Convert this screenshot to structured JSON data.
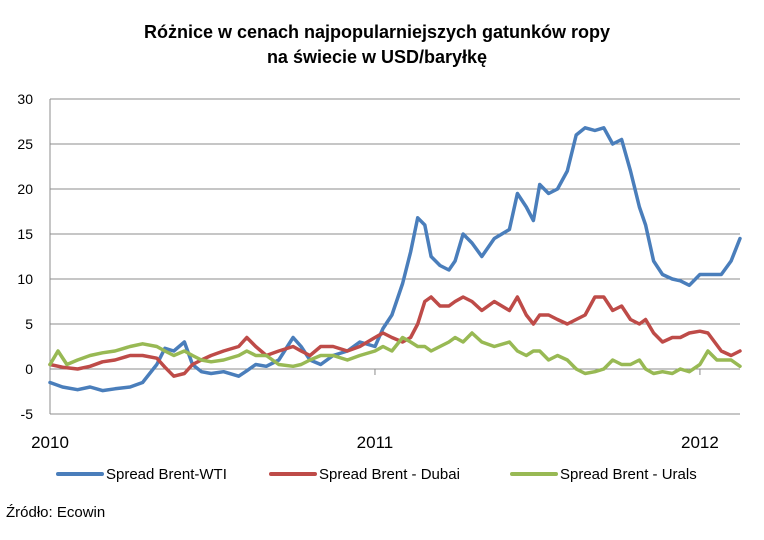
{
  "chart_data": {
    "type": "line",
    "title": [
      "Różnice w cenach najpopularniejszych gatunków ropy",
      "na świecie w USD/baryłkę"
    ],
    "xlabel": "",
    "ylabel": "",
    "x_ticks": [
      "2010",
      "2011",
      "2012"
    ],
    "y_ticks": [
      "30",
      "25",
      "20",
      "15",
      "10",
      "5",
      "0",
      "-5"
    ],
    "xlim": [
      "2010-01-01",
      "2012-02-15"
    ],
    "ylim": [
      -5,
      30
    ],
    "grid": "horizontal",
    "legend_position": "bottom",
    "source": "Źródło: Ecowin",
    "series": [
      {
        "name": "Spread Brent-WTI",
        "color": "#4a7ebb",
        "points": [
          [
            "2010-01-01",
            -1.5
          ],
          [
            "2010-01-15",
            -2.0
          ],
          [
            "2010-02-01",
            -2.3
          ],
          [
            "2010-02-15",
            -2.0
          ],
          [
            "2010-03-01",
            -2.4
          ],
          [
            "2010-03-15",
            -2.2
          ],
          [
            "2010-04-01",
            -2.0
          ],
          [
            "2010-04-15",
            -1.5
          ],
          [
            "2010-05-01",
            0.5
          ],
          [
            "2010-05-10",
            2.3
          ],
          [
            "2010-05-20",
            2.0
          ],
          [
            "2010-06-01",
            3.0
          ],
          [
            "2010-06-10",
            0.5
          ],
          [
            "2010-06-20",
            -0.3
          ],
          [
            "2010-07-01",
            -0.5
          ],
          [
            "2010-07-15",
            -0.3
          ],
          [
            "2010-08-01",
            -0.8
          ],
          [
            "2010-08-10",
            -0.2
          ],
          [
            "2010-08-20",
            0.5
          ],
          [
            "2010-09-01",
            0.3
          ],
          [
            "2010-09-15",
            1.0
          ],
          [
            "2010-10-01",
            3.5
          ],
          [
            "2010-10-10",
            2.5
          ],
          [
            "2010-10-20",
            1.0
          ],
          [
            "2010-11-01",
            0.5
          ],
          [
            "2010-11-15",
            1.5
          ],
          [
            "2010-12-01",
            2.0
          ],
          [
            "2010-12-15",
            3.0
          ],
          [
            "2011-01-01",
            2.5
          ],
          [
            "2011-01-10",
            4.5
          ],
          [
            "2011-01-20",
            6.0
          ],
          [
            "2011-02-01",
            9.5
          ],
          [
            "2011-02-10",
            13.0
          ],
          [
            "2011-02-18",
            16.8
          ],
          [
            "2011-02-26",
            16.0
          ],
          [
            "2011-03-05",
            12.5
          ],
          [
            "2011-03-15",
            11.5
          ],
          [
            "2011-03-25",
            11.0
          ],
          [
            "2011-04-01",
            12.0
          ],
          [
            "2011-04-10",
            15.0
          ],
          [
            "2011-04-20",
            14.0
          ],
          [
            "2011-05-01",
            12.5
          ],
          [
            "2011-05-15",
            14.5
          ],
          [
            "2011-06-01",
            15.5
          ],
          [
            "2011-06-10",
            19.5
          ],
          [
            "2011-06-20",
            18.0
          ],
          [
            "2011-06-28",
            16.5
          ],
          [
            "2011-07-05",
            20.5
          ],
          [
            "2011-07-15",
            19.5
          ],
          [
            "2011-07-25",
            20.0
          ],
          [
            "2011-08-05",
            22.0
          ],
          [
            "2011-08-15",
            26.0
          ],
          [
            "2011-08-25",
            26.8
          ],
          [
            "2011-09-05",
            26.5
          ],
          [
            "2011-09-15",
            26.8
          ],
          [
            "2011-09-25",
            25.0
          ],
          [
            "2011-10-05",
            25.5
          ],
          [
            "2011-10-15",
            22.0
          ],
          [
            "2011-10-25",
            18.0
          ],
          [
            "2011-11-01",
            16.0
          ],
          [
            "2011-11-10",
            12.0
          ],
          [
            "2011-11-20",
            10.5
          ],
          [
            "2011-12-01",
            10.0
          ],
          [
            "2011-12-10",
            9.8
          ],
          [
            "2011-12-20",
            9.3
          ],
          [
            "2012-01-01",
            10.5
          ],
          [
            "2012-01-10",
            10.5
          ],
          [
            "2012-01-25",
            10.5
          ],
          [
            "2012-02-05",
            12.0
          ],
          [
            "2012-02-15",
            14.5
          ]
        ]
      },
      {
        "name": "Spread Brent - Dubai",
        "color": "#be4b48",
        "points": [
          [
            "2010-01-01",
            0.5
          ],
          [
            "2010-01-15",
            0.2
          ],
          [
            "2010-02-01",
            0.0
          ],
          [
            "2010-02-15",
            0.3
          ],
          [
            "2010-03-01",
            0.8
          ],
          [
            "2010-03-15",
            1.0
          ],
          [
            "2010-04-01",
            1.5
          ],
          [
            "2010-04-15",
            1.5
          ],
          [
            "2010-05-01",
            1.2
          ],
          [
            "2010-05-10",
            0.2
          ],
          [
            "2010-05-20",
            -0.8
          ],
          [
            "2010-06-01",
            -0.5
          ],
          [
            "2010-06-10",
            0.5
          ],
          [
            "2010-06-20",
            1.0
          ],
          [
            "2010-07-01",
            1.5
          ],
          [
            "2010-07-15",
            2.0
          ],
          [
            "2010-08-01",
            2.5
          ],
          [
            "2010-08-10",
            3.5
          ],
          [
            "2010-08-20",
            2.5
          ],
          [
            "2010-09-01",
            1.5
          ],
          [
            "2010-09-15",
            2.0
          ],
          [
            "2010-10-01",
            2.5
          ],
          [
            "2010-10-10",
            2.0
          ],
          [
            "2010-10-20",
            1.5
          ],
          [
            "2010-11-01",
            2.5
          ],
          [
            "2010-11-15",
            2.5
          ],
          [
            "2010-12-01",
            2.0
          ],
          [
            "2010-12-15",
            2.5
          ],
          [
            "2011-01-01",
            3.5
          ],
          [
            "2011-01-10",
            4.0
          ],
          [
            "2011-01-20",
            3.5
          ],
          [
            "2011-02-01",
            3.0
          ],
          [
            "2011-02-10",
            3.5
          ],
          [
            "2011-02-18",
            5.0
          ],
          [
            "2011-02-26",
            7.5
          ],
          [
            "2011-03-05",
            8.0
          ],
          [
            "2011-03-15",
            7.0
          ],
          [
            "2011-03-25",
            7.0
          ],
          [
            "2011-04-01",
            7.5
          ],
          [
            "2011-04-10",
            8.0
          ],
          [
            "2011-04-20",
            7.5
          ],
          [
            "2011-05-01",
            6.5
          ],
          [
            "2011-05-15",
            7.5
          ],
          [
            "2011-06-01",
            6.5
          ],
          [
            "2011-06-10",
            8.0
          ],
          [
            "2011-06-20",
            6.0
          ],
          [
            "2011-06-28",
            5.0
          ],
          [
            "2011-07-05",
            6.0
          ],
          [
            "2011-07-15",
            6.0
          ],
          [
            "2011-07-25",
            5.5
          ],
          [
            "2011-08-05",
            5.0
          ],
          [
            "2011-08-15",
            5.5
          ],
          [
            "2011-08-25",
            6.0
          ],
          [
            "2011-09-05",
            8.0
          ],
          [
            "2011-09-15",
            8.0
          ],
          [
            "2011-09-25",
            6.5
          ],
          [
            "2011-10-05",
            7.0
          ],
          [
            "2011-10-15",
            5.5
          ],
          [
            "2011-10-25",
            5.0
          ],
          [
            "2011-11-01",
            5.5
          ],
          [
            "2011-11-10",
            4.0
          ],
          [
            "2011-11-20",
            3.0
          ],
          [
            "2011-12-01",
            3.5
          ],
          [
            "2011-12-10",
            3.5
          ],
          [
            "2011-12-20",
            4.0
          ],
          [
            "2012-01-01",
            4.2
          ],
          [
            "2012-01-10",
            4.0
          ],
          [
            "2012-01-25",
            2.0
          ],
          [
            "2012-02-05",
            1.5
          ],
          [
            "2012-02-15",
            2.0
          ]
        ]
      },
      {
        "name": "Spread Brent - Urals",
        "color": "#98b954",
        "points": [
          [
            "2010-01-01",
            0.5
          ],
          [
            "2010-01-10",
            2.0
          ],
          [
            "2010-01-20",
            0.5
          ],
          [
            "2010-02-01",
            1.0
          ],
          [
            "2010-02-15",
            1.5
          ],
          [
            "2010-03-01",
            1.8
          ],
          [
            "2010-03-15",
            2.0
          ],
          [
            "2010-04-01",
            2.5
          ],
          [
            "2010-04-15",
            2.8
          ],
          [
            "2010-05-01",
            2.5
          ],
          [
            "2010-05-10",
            2.0
          ],
          [
            "2010-05-20",
            1.5
          ],
          [
            "2010-06-01",
            2.0
          ],
          [
            "2010-06-10",
            1.5
          ],
          [
            "2010-06-20",
            1.0
          ],
          [
            "2010-07-01",
            0.8
          ],
          [
            "2010-07-15",
            1.0
          ],
          [
            "2010-08-01",
            1.5
          ],
          [
            "2010-08-10",
            2.0
          ],
          [
            "2010-08-20",
            1.5
          ],
          [
            "2010-09-01",
            1.5
          ],
          [
            "2010-09-15",
            0.5
          ],
          [
            "2010-10-01",
            0.3
          ],
          [
            "2010-10-10",
            0.5
          ],
          [
            "2010-10-20",
            1.0
          ],
          [
            "2010-11-01",
            1.5
          ],
          [
            "2010-11-15",
            1.5
          ],
          [
            "2010-12-01",
            1.0
          ],
          [
            "2010-12-15",
            1.5
          ],
          [
            "2011-01-01",
            2.0
          ],
          [
            "2011-01-10",
            2.5
          ],
          [
            "2011-01-20",
            2.0
          ],
          [
            "2011-02-01",
            3.5
          ],
          [
            "2011-02-10",
            3.0
          ],
          [
            "2011-02-18",
            2.5
          ],
          [
            "2011-02-26",
            2.5
          ],
          [
            "2011-03-05",
            2.0
          ],
          [
            "2011-03-15",
            2.5
          ],
          [
            "2011-03-25",
            3.0
          ],
          [
            "2011-04-01",
            3.5
          ],
          [
            "2011-04-10",
            3.0
          ],
          [
            "2011-04-20",
            4.0
          ],
          [
            "2011-05-01",
            3.0
          ],
          [
            "2011-05-15",
            2.5
          ],
          [
            "2011-06-01",
            3.0
          ],
          [
            "2011-06-10",
            2.0
          ],
          [
            "2011-06-20",
            1.5
          ],
          [
            "2011-06-28",
            2.0
          ],
          [
            "2011-07-05",
            2.0
          ],
          [
            "2011-07-15",
            1.0
          ],
          [
            "2011-07-25",
            1.5
          ],
          [
            "2011-08-05",
            1.0
          ],
          [
            "2011-08-15",
            0.0
          ],
          [
            "2011-08-25",
            -0.5
          ],
          [
            "2011-09-05",
            -0.3
          ],
          [
            "2011-09-15",
            0.0
          ],
          [
            "2011-09-25",
            1.0
          ],
          [
            "2011-10-05",
            0.5
          ],
          [
            "2011-10-15",
            0.5
          ],
          [
            "2011-10-25",
            1.0
          ],
          [
            "2011-11-01",
            0.0
          ],
          [
            "2011-11-10",
            -0.5
          ],
          [
            "2011-11-20",
            -0.3
          ],
          [
            "2011-12-01",
            -0.5
          ],
          [
            "2011-12-10",
            0.0
          ],
          [
            "2011-12-20",
            -0.3
          ],
          [
            "2012-01-01",
            0.5
          ],
          [
            "2012-01-10",
            2.0
          ],
          [
            "2012-01-20",
            1.0
          ],
          [
            "2012-02-05",
            1.0
          ],
          [
            "2012-02-15",
            0.3
          ]
        ]
      }
    ]
  }
}
